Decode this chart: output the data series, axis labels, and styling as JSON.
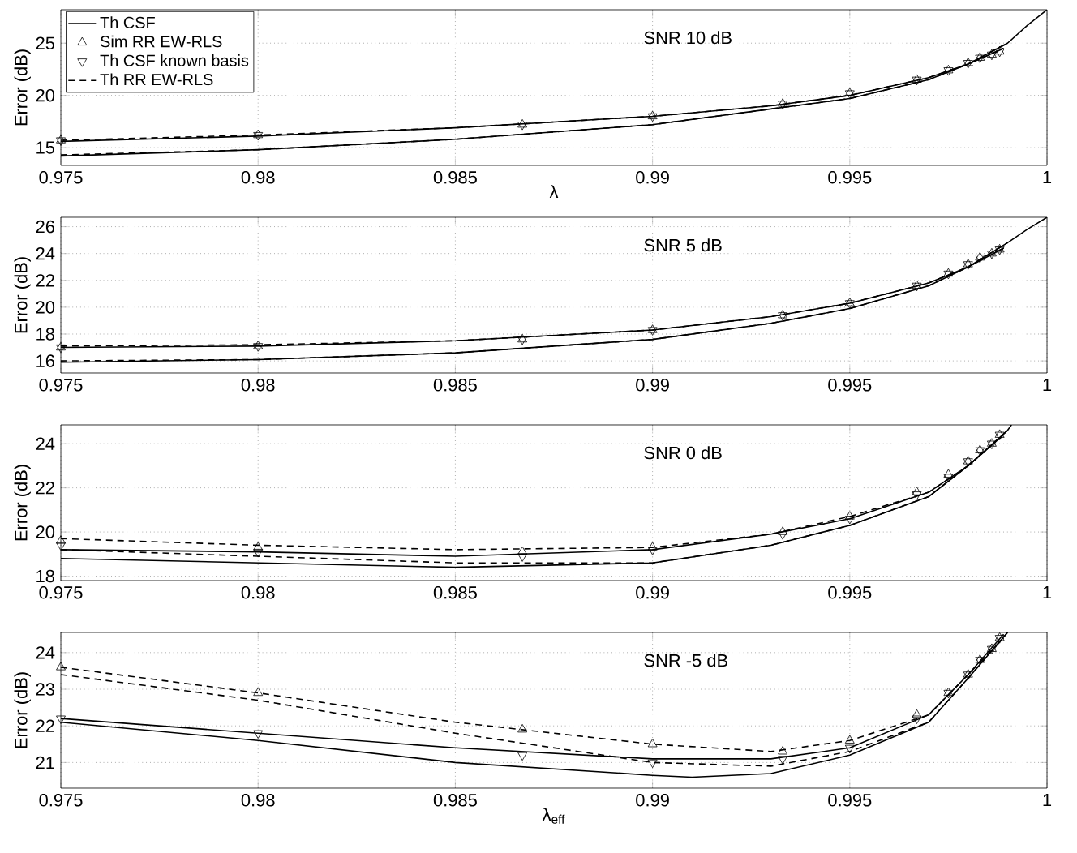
{
  "chart_data": [
    {
      "type": "line",
      "xlabel": "λ",
      "ylabel": "Error (dB)",
      "xlim": [
        0.975,
        1
      ],
      "ylim": [
        13.3,
        28.2
      ],
      "xticks": [
        0.975,
        0.98,
        0.985,
        0.99,
        0.995,
        1
      ],
      "yticks": [
        15,
        20,
        25
      ],
      "grid": true,
      "legend": "top left",
      "annotations": [
        "SNR 10 dB"
      ],
      "series": [
        {
          "name": "Th CSF",
          "type": "line",
          "line_style": "solid",
          "color": "#000000",
          "x": [
            0.975,
            0.98,
            0.985,
            0.99,
            0.993,
            0.995,
            0.997,
            0.998,
            0.9989
          ],
          "values": [
            15.6,
            16.1,
            16.9,
            18.0,
            19.0,
            20.0,
            21.7,
            23.0,
            24.5
          ]
        },
        {
          "name": "Sim RR EW-RLS",
          "type": "scatter",
          "marker": "triangle",
          "color": "#000000",
          "x": [
            0.975,
            0.98,
            0.9867,
            0.99,
            0.9933,
            0.995,
            0.9967,
            0.9975,
            0.998,
            0.9983,
            0.9986,
            0.9988
          ],
          "values": [
            15.7,
            16.2,
            17.2,
            18.0,
            19.2,
            20.2,
            21.5,
            22.4,
            23.1,
            23.6,
            23.9,
            24.2
          ]
        },
        {
          "name": "Th CSF known basis",
          "type": "scatter",
          "marker": "triangle-down",
          "color": "#000000",
          "x": [
            0.975,
            0.98,
            0.9867,
            0.99,
            0.9933,
            0.995,
            0.9967,
            0.9975,
            0.998,
            0.9983,
            0.9986,
            0.9988
          ],
          "values": [
            15.7,
            16.2,
            17.2,
            18.0,
            19.2,
            20.2,
            21.5,
            22.4,
            23.1,
            23.6,
            23.9,
            24.2
          ]
        },
        {
          "name": "Th RR EW-RLS",
          "type": "line",
          "line_style": "dashed",
          "color": "#000000",
          "x": [
            0.975,
            0.98,
            0.985,
            0.99,
            0.993,
            0.995,
            0.997,
            0.998,
            0.9989
          ],
          "values": [
            15.7,
            16.2,
            16.9,
            18.0,
            19.0,
            20.0,
            21.7,
            23.0,
            24.5
          ]
        },
        {
          "type": "line",
          "line_style": "solid",
          "color": "#000000",
          "x": [
            0.975,
            0.98,
            0.985,
            0.99,
            0.993,
            0.995,
            0.997,
            0.998,
            0.999,
            0.9995,
            1.0
          ],
          "values": [
            14.2,
            14.8,
            15.8,
            17.2,
            18.7,
            19.7,
            21.5,
            23.0,
            25.0,
            26.7,
            28.2
          ]
        },
        {
          "type": "line",
          "line_style": "dashed",
          "color": "#000000",
          "x": [
            0.975,
            0.98,
            0.985,
            0.99,
            0.993,
            0.995,
            0.997,
            0.998,
            0.999
          ],
          "values": [
            14.3,
            14.8,
            15.8,
            17.2,
            18.7,
            19.7,
            21.5,
            23.0,
            25.0
          ]
        }
      ]
    },
    {
      "type": "line",
      "ylabel": "Error (dB)",
      "xlim": [
        0.975,
        1
      ],
      "ylim": [
        15.1,
        26.7
      ],
      "xticks": [
        0.975,
        0.98,
        0.985,
        0.99,
        0.995,
        1
      ],
      "yticks": [
        16,
        18,
        20,
        22,
        24,
        26
      ],
      "grid": true,
      "annotations": [
        "SNR 5 dB"
      ],
      "series": [
        {
          "type": "line",
          "line_style": "solid",
          "color": "#000000",
          "x": [
            0.975,
            0.98,
            0.985,
            0.99,
            0.993,
            0.995,
            0.997,
            0.998,
            0.9989
          ],
          "values": [
            17.0,
            17.1,
            17.5,
            18.3,
            19.3,
            20.3,
            21.8,
            23.0,
            24.4
          ]
        },
        {
          "type": "scatter",
          "marker": "triangle",
          "color": "#000000",
          "x": [
            0.975,
            0.98,
            0.9867,
            0.99,
            0.9933,
            0.995,
            0.9967,
            0.9975,
            0.998,
            0.9983,
            0.9986,
            0.9988
          ],
          "values": [
            17.0,
            17.1,
            17.6,
            18.3,
            19.4,
            20.3,
            21.6,
            22.5,
            23.2,
            23.7,
            24.0,
            24.3
          ]
        },
        {
          "type": "scatter",
          "marker": "triangle-down",
          "color": "#000000",
          "x": [
            0.975,
            0.98,
            0.9867,
            0.99,
            0.9933,
            0.995,
            0.9967,
            0.9975,
            0.998,
            0.9983,
            0.9986,
            0.9988
          ],
          "values": [
            17.0,
            17.1,
            17.6,
            18.3,
            19.4,
            20.3,
            21.6,
            22.5,
            23.2,
            23.7,
            24.0,
            24.3
          ]
        },
        {
          "type": "line",
          "line_style": "dashed",
          "color": "#000000",
          "x": [
            0.975,
            0.98,
            0.985,
            0.99,
            0.993,
            0.995,
            0.997,
            0.998,
            0.9989
          ],
          "values": [
            17.1,
            17.2,
            17.5,
            18.3,
            19.3,
            20.3,
            21.8,
            23.0,
            24.4
          ]
        },
        {
          "type": "line",
          "line_style": "solid",
          "color": "#000000",
          "x": [
            0.975,
            0.98,
            0.985,
            0.99,
            0.993,
            0.995,
            0.997,
            0.998,
            0.999,
            0.9995,
            1.0
          ],
          "values": [
            15.9,
            16.1,
            16.6,
            17.6,
            18.8,
            19.9,
            21.6,
            23.0,
            24.8,
            25.8,
            26.7
          ]
        },
        {
          "type": "line",
          "line_style": "dashed",
          "color": "#000000",
          "x": [
            0.975,
            0.98,
            0.985,
            0.99,
            0.993,
            0.995,
            0.997,
            0.998,
            0.999
          ],
          "values": [
            16.0,
            16.1,
            16.6,
            17.6,
            18.8,
            19.9,
            21.6,
            23.0,
            24.8
          ]
        }
      ]
    },
    {
      "type": "line",
      "ylabel": "Error (dB)",
      "xlim": [
        0.975,
        1
      ],
      "ylim": [
        17.8,
        24.85
      ],
      "xticks": [
        0.975,
        0.98,
        0.985,
        0.99,
        0.995,
        1
      ],
      "yticks": [
        18,
        20,
        22,
        24
      ],
      "grid": true,
      "annotations": [
        "SNR 0 dB"
      ],
      "series": [
        {
          "type": "line",
          "line_style": "solid",
          "color": "#000000",
          "x": [
            0.975,
            0.98,
            0.985,
            0.99,
            0.993,
            0.995,
            0.997,
            0.998,
            0.9989
          ],
          "values": [
            19.2,
            19.1,
            18.9,
            19.2,
            19.9,
            20.6,
            21.8,
            23.0,
            24.4
          ]
        },
        {
          "type": "scatter",
          "marker": "triangle",
          "color": "#000000",
          "x": [
            0.975,
            0.98,
            0.9867,
            0.99,
            0.9933,
            0.995,
            0.9967,
            0.9975,
            0.998,
            0.9983,
            0.9986,
            0.9988
          ],
          "values": [
            19.6,
            19.3,
            19.1,
            19.3,
            20.0,
            20.7,
            21.8,
            22.6,
            23.2,
            23.7,
            24.0,
            24.4
          ]
        },
        {
          "type": "scatter",
          "marker": "triangle-down",
          "color": "#000000",
          "x": [
            0.975,
            0.98,
            0.9867,
            0.99,
            0.9933,
            0.995,
            0.9967,
            0.9975,
            0.998,
            0.9983,
            0.9986,
            0.9988
          ],
          "values": [
            19.4,
            19.1,
            18.9,
            19.2,
            19.9,
            20.6,
            21.7,
            22.5,
            23.2,
            23.7,
            24.0,
            24.4
          ]
        },
        {
          "type": "line",
          "line_style": "dashed",
          "color": "#000000",
          "x": [
            0.975,
            0.98,
            0.985,
            0.99,
            0.993,
            0.995,
            0.997,
            0.998,
            0.9989
          ],
          "values": [
            19.7,
            19.4,
            19.2,
            19.3,
            19.9,
            20.7,
            21.8,
            23.0,
            24.4
          ]
        },
        {
          "type": "line",
          "line_style": "solid",
          "color": "#000000",
          "x": [
            0.975,
            0.98,
            0.985,
            0.99,
            0.993,
            0.995,
            0.997,
            0.998,
            0.999,
            0.9991
          ],
          "values": [
            18.8,
            18.6,
            18.4,
            18.6,
            19.4,
            20.3,
            21.6,
            23.0,
            24.6,
            24.85
          ]
        },
        {
          "type": "line",
          "line_style": "dashed",
          "color": "#000000",
          "x": [
            0.975,
            0.98,
            0.985,
            0.99,
            0.993,
            0.995,
            0.997,
            0.998,
            0.999
          ],
          "values": [
            19.2,
            18.9,
            18.6,
            18.6,
            19.4,
            20.3,
            21.6,
            23.0,
            24.6
          ]
        }
      ]
    },
    {
      "type": "line",
      "xlabel": "λ$_{eff}$",
      "ylabel": "Error (dB)",
      "xlim": [
        0.975,
        1
      ],
      "ylim": [
        20.3,
        24.55
      ],
      "xticks": [
        0.975,
        0.98,
        0.985,
        0.99,
        0.995,
        1
      ],
      "yticks": [
        21,
        22,
        23,
        24
      ],
      "grid": true,
      "annotations": [
        "SNR -5 dB"
      ],
      "series": [
        {
          "type": "line",
          "line_style": "solid",
          "color": "#000000",
          "x": [
            0.975,
            0.98,
            0.985,
            0.99,
            0.993,
            0.995,
            0.997,
            0.998,
            0.9989
          ],
          "values": [
            22.2,
            21.8,
            21.4,
            21.1,
            21.1,
            21.4,
            22.3,
            23.4,
            24.5
          ]
        },
        {
          "type": "scatter",
          "marker": "triangle",
          "color": "#000000",
          "x": [
            0.975,
            0.98,
            0.9867,
            0.99,
            0.9933,
            0.995,
            0.9967,
            0.9975,
            0.998,
            0.9983,
            0.9986,
            0.9988
          ],
          "values": [
            23.6,
            22.9,
            21.9,
            21.5,
            21.3,
            21.6,
            22.3,
            22.9,
            23.4,
            23.8,
            24.1,
            24.4
          ]
        },
        {
          "type": "scatter",
          "marker": "triangle-down",
          "color": "#000000",
          "x": [
            0.975,
            0.98,
            0.9867,
            0.99,
            0.9933,
            0.995,
            0.9967,
            0.9975,
            0.998,
            0.9983,
            0.9986,
            0.9988
          ],
          "values": [
            22.2,
            21.8,
            21.2,
            21.0,
            21.1,
            21.4,
            22.2,
            22.9,
            23.4,
            23.8,
            24.1,
            24.4
          ]
        },
        {
          "type": "line",
          "line_style": "dashed",
          "color": "#000000",
          "x": [
            0.975,
            0.98,
            0.985,
            0.99,
            0.993,
            0.995,
            0.997,
            0.998,
            0.9989
          ],
          "values": [
            23.6,
            22.9,
            22.1,
            21.5,
            21.3,
            21.6,
            22.3,
            23.4,
            24.4
          ]
        },
        {
          "type": "line",
          "line_style": "solid",
          "color": "#000000",
          "x": [
            0.975,
            0.98,
            0.985,
            0.99,
            0.991,
            0.993,
            0.995,
            0.997,
            0.998,
            0.999
          ],
          "values": [
            22.1,
            21.6,
            21.0,
            20.65,
            20.6,
            20.7,
            21.2,
            22.1,
            23.3,
            24.55
          ]
        },
        {
          "type": "line",
          "line_style": "dashed",
          "color": "#000000",
          "x": [
            0.975,
            0.98,
            0.985,
            0.99,
            0.993,
            0.995,
            0.997,
            0.998,
            0.999
          ],
          "values": [
            23.4,
            22.7,
            21.8,
            21.0,
            20.9,
            21.3,
            22.1,
            23.3,
            24.55
          ]
        }
      ]
    }
  ]
}
